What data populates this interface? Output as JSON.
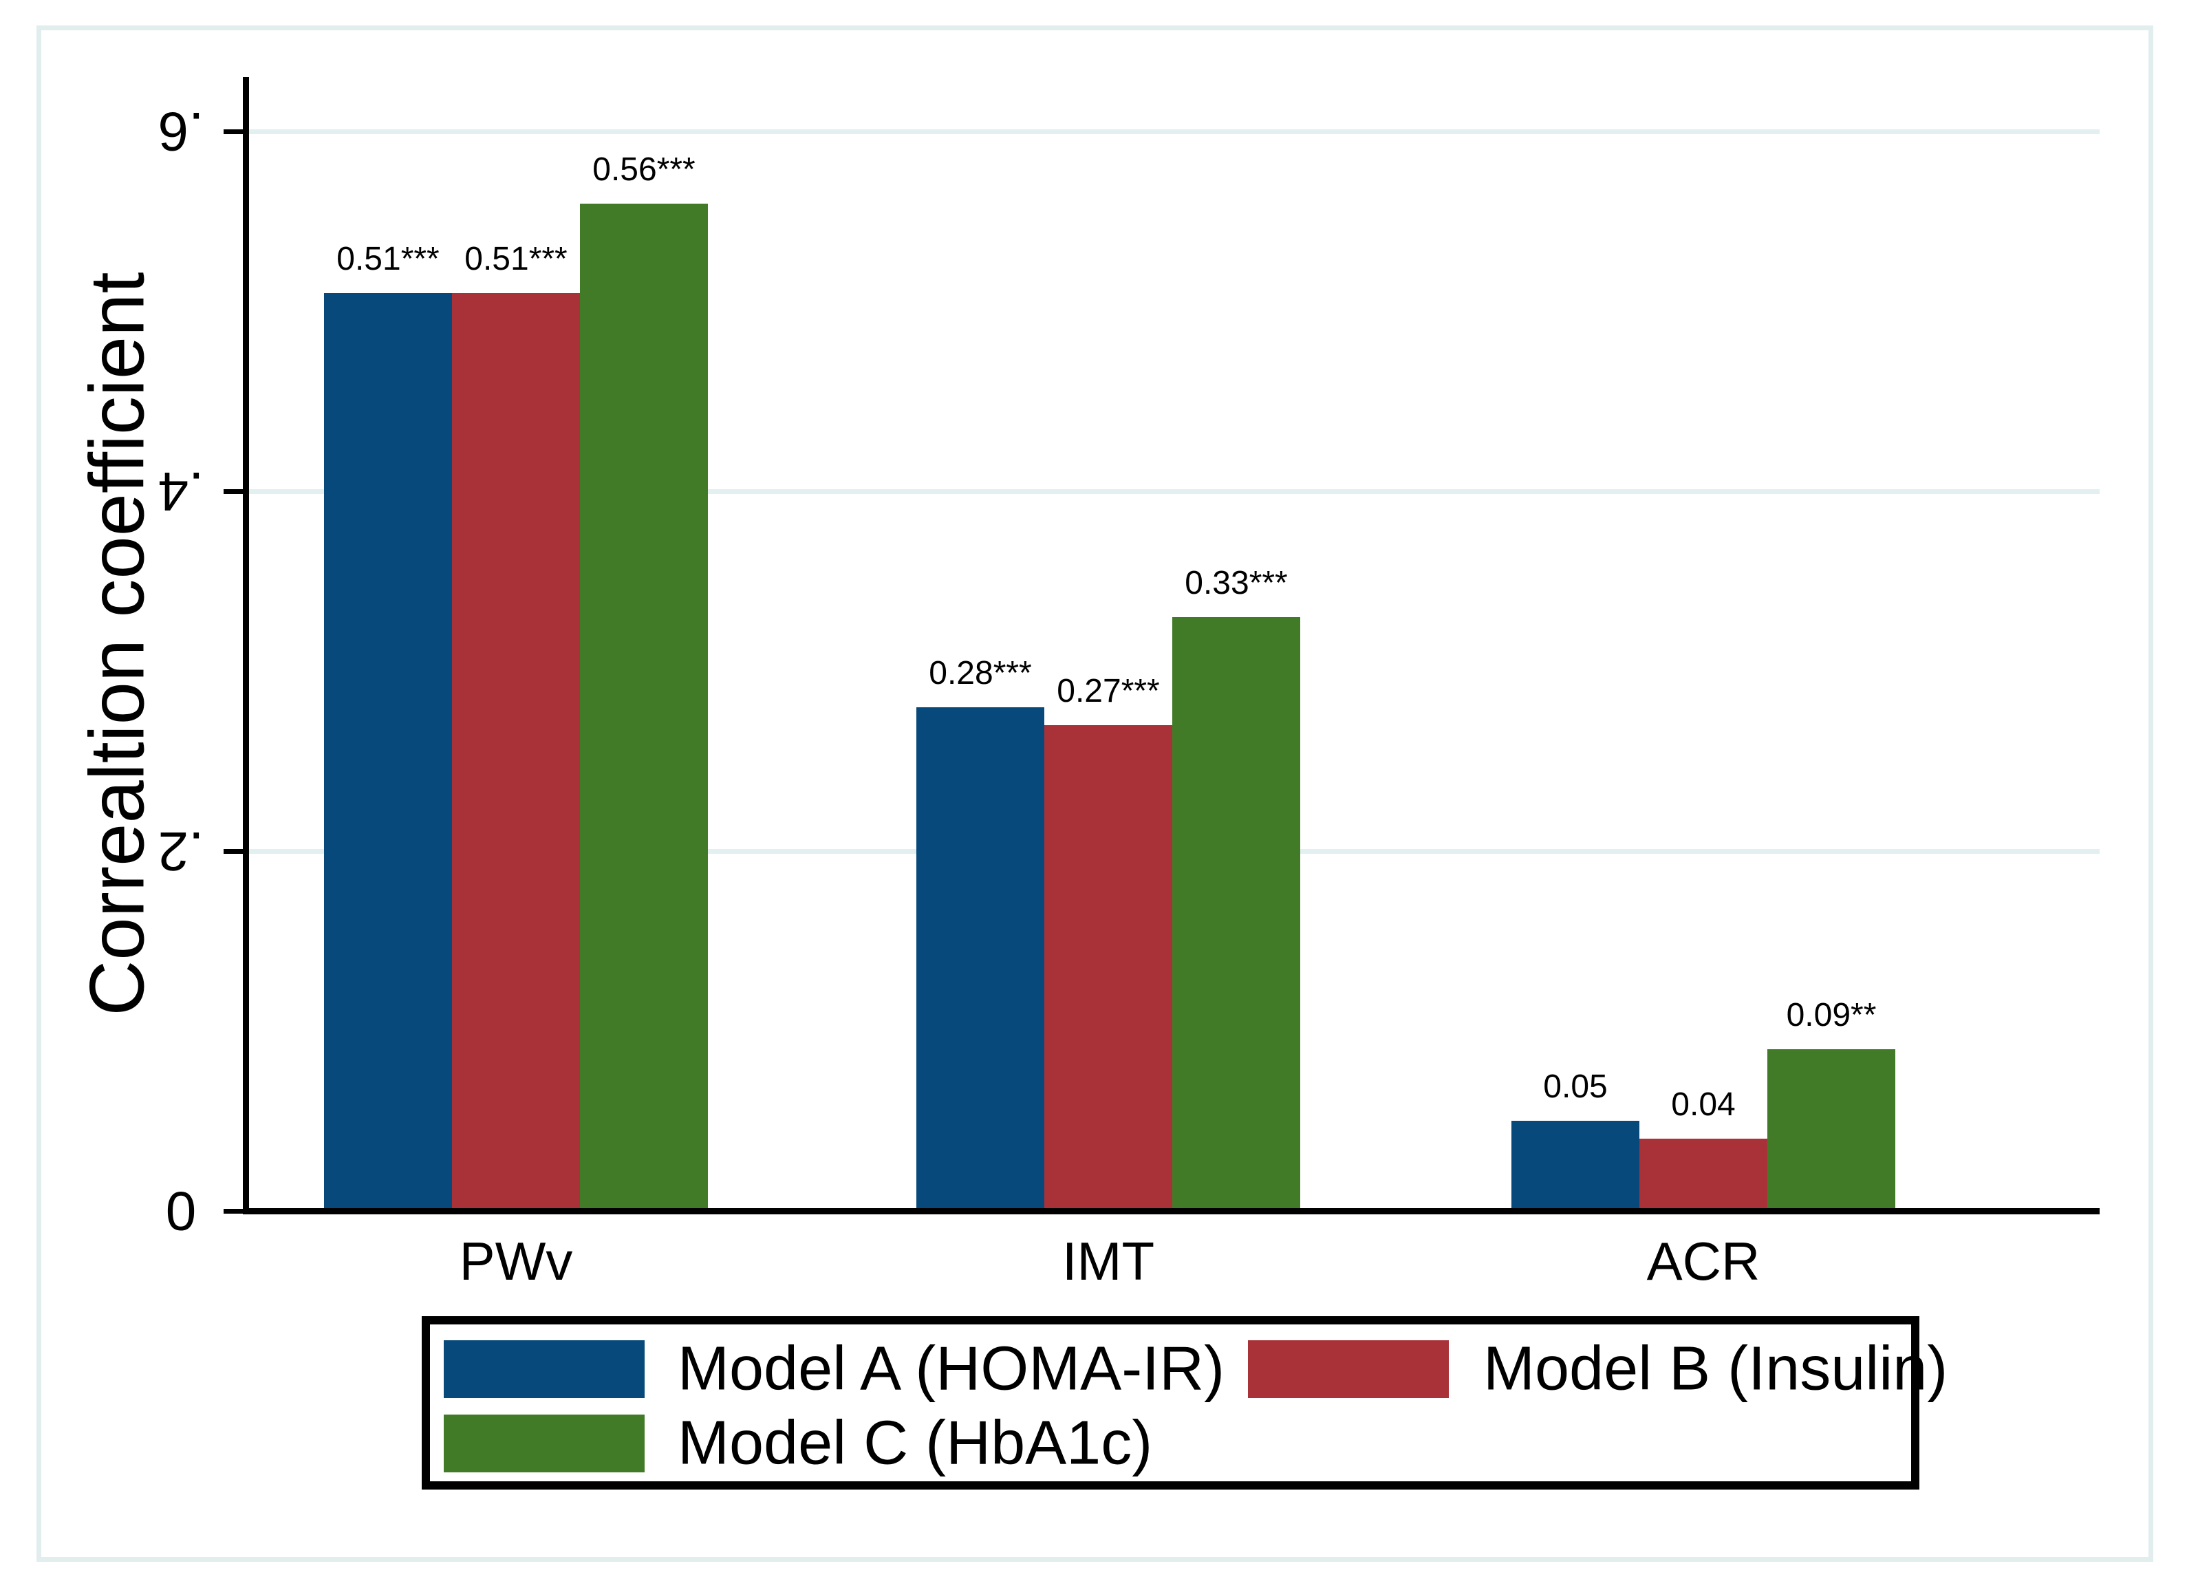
{
  "chart_data": {
    "type": "bar",
    "title": "",
    "xlabel": "",
    "ylabel": "Correaltion coefficient",
    "categories": [
      "PWv",
      "IMT",
      "ACR"
    ],
    "series": [
      {
        "name": "Model A (HOMA-IR)",
        "color": "#06497A",
        "values": [
          0.51,
          0.28,
          0.05
        ],
        "bar_labels": [
          "0.51***",
          "0.28***",
          "0.05"
        ]
      },
      {
        "name": "Model B (Insulin)",
        "color": "#A93239",
        "values": [
          0.51,
          0.27,
          0.04
        ],
        "bar_labels": [
          "0.51***",
          "0.27***",
          "0.04"
        ]
      },
      {
        "name": "Model C (HbA1c)",
        "color": "#427B27",
        "values": [
          0.56,
          0.33,
          0.09
        ],
        "bar_labels": [
          "0.56***",
          "0.33***",
          "0.09**"
        ]
      }
    ],
    "y_ticks": [
      {
        "value": 0.0,
        "label": "0"
      },
      {
        "value": 0.2,
        "label": ".2"
      },
      {
        "value": 0.4,
        "label": ".4"
      },
      {
        "value": 0.6,
        "label": ".6"
      }
    ],
    "ylim": [
      0,
      0.63
    ],
    "grid": true,
    "legend_position": "bottom-box",
    "colors": {
      "grid": "#E3F0F1",
      "axis": "#000000",
      "figure_border": "#E2EDEE",
      "background": "#FFFFFF",
      "text": "#000000"
    }
  }
}
